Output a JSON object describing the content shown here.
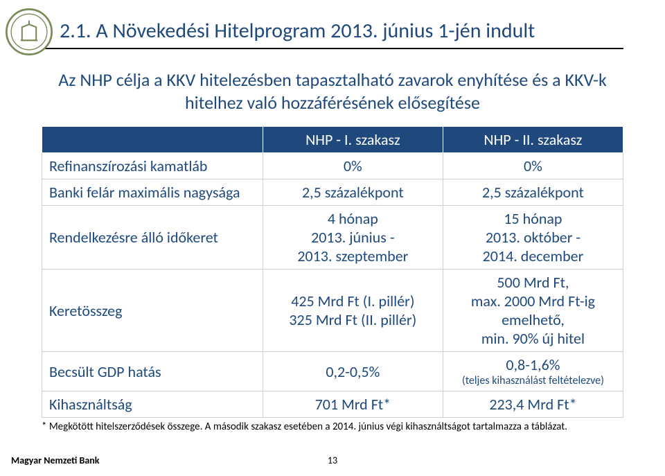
{
  "title": "2.1. A Növekedési Hitelprogram 2013. június 1-jén indult",
  "lead": "Az NHP célja a KKV hitelezésben tapasztalható zavarok enyhítése és a KKV-k hitelhez való hozzáférésének elősegítése",
  "colors": {
    "heading": "#1f497d",
    "table_header_bg": "#1f497d",
    "table_header_fg": "#ffffff",
    "cell_fg": "#1f497d",
    "rule": "#000000"
  },
  "table": {
    "headers": {
      "blank": "",
      "col1": "NHP - I. szakasz",
      "col2": "NHP - II. szakasz"
    },
    "rows": [
      {
        "label": "Refinanszírozási kamatláb",
        "c1": "0%",
        "c2": "0%"
      },
      {
        "label": "Banki felár maximális nagysága",
        "c1": "2,5 százalékpont",
        "c2": "2,5 százalékpont"
      },
      {
        "label": "Rendelkezésre álló időkeret",
        "c1": "4 hónap\n2013. június -\n2013. szeptember",
        "c2": "15 hónap\n2013. október -\n2014. december"
      },
      {
        "label": "Keretösszeg",
        "c1": "425 Mrd Ft (I. pillér)\n325 Mrd Ft (II. pillér)",
        "c2": "500 Mrd Ft,\nmax. 2000 Mrd Ft-ig\nemelhető,\nmin. 90% új hitel"
      },
      {
        "label": "Becsült GDP hatás",
        "c1": "0,2-0,5%",
        "c2_main": "0,8-1,6%",
        "c2_sub": "(teljes kihasználást feltételezve)"
      },
      {
        "label": "Kihasználtság",
        "c1": "701 Mrd Ft*",
        "c2": "223,4 Mrd Ft*"
      }
    ]
  },
  "footnote": "* Megkötött hitelszerződések összege. A második szakasz esetében a 2014. június végi kihasználtságot tartalmazza a táblázat.",
  "footer": "Magyar Nemzeti Bank",
  "pagenum": "13"
}
